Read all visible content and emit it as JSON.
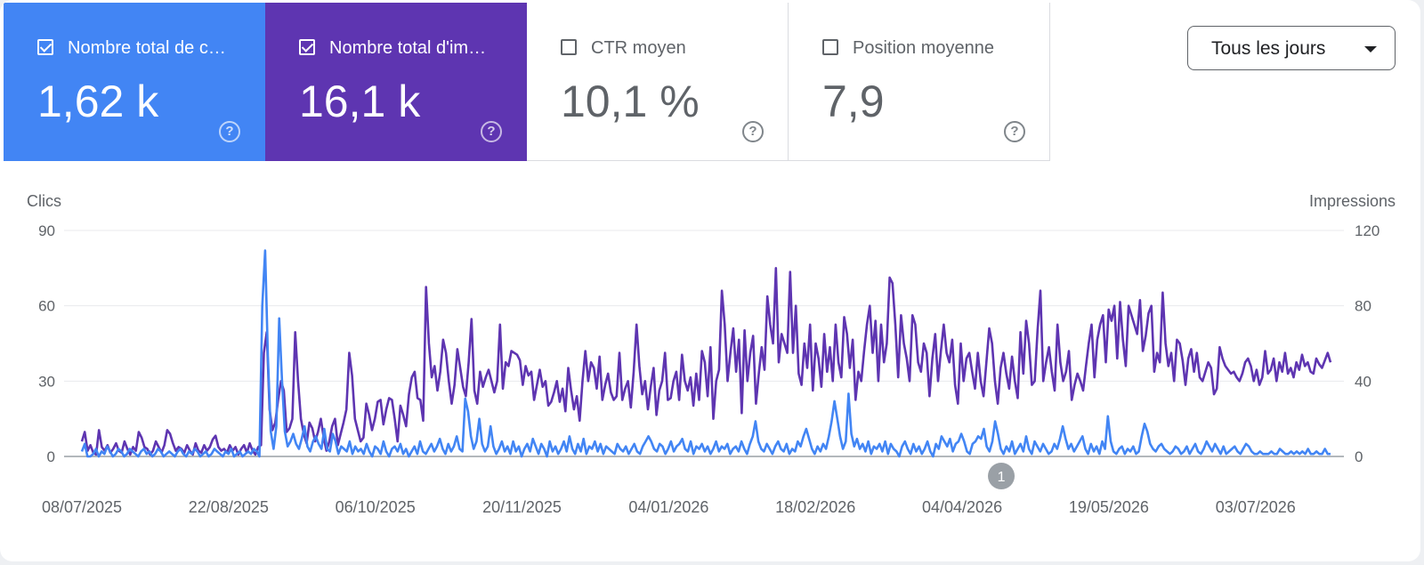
{
  "cards": [
    {
      "label": "Nombre total de c…",
      "value": "1,62 k",
      "checked": true,
      "color": "#4285f4"
    },
    {
      "label": "Nombre total d'im…",
      "value": "16,1 k",
      "checked": true,
      "color": "#5e35b1"
    },
    {
      "label": "CTR moyen",
      "value": "10,1 %",
      "checked": false,
      "color": "#ffffff"
    },
    {
      "label": "Position moyenne",
      "value": "7,9",
      "checked": false,
      "color": "#ffffff"
    }
  ],
  "help_icon_glyph": "?",
  "date_filter": {
    "label": "Tous les jours"
  },
  "annotation": {
    "label": "1",
    "date": "2026-04-16"
  },
  "chart_data": {
    "type": "line",
    "left_axis": {
      "title": "Clics",
      "ticks": [
        0,
        30,
        60,
        90
      ],
      "range": [
        0,
        90
      ]
    },
    "right_axis": {
      "title": "Impressions",
      "ticks": [
        0,
        40,
        80,
        120
      ],
      "range": [
        0,
        120
      ]
    },
    "x_start": "2025-07-08",
    "x_end": "2026-07-26",
    "x_tick_labels": [
      "08/07/2025",
      "22/08/2025",
      "06/10/2025",
      "20/11/2025",
      "04/01/2026",
      "18/02/2026",
      "04/04/2026",
      "19/05/2026",
      "03/07/2026"
    ],
    "series": [
      {
        "name": "Nombre total de clics",
        "axis": "left",
        "color": "#4285f4",
        "values": [
          2,
          5,
          0,
          0,
          1,
          3,
          0,
          2,
          1,
          4,
          2,
          0,
          1,
          3,
          2,
          0,
          1,
          3,
          2,
          1,
          0,
          2,
          3,
          1,
          2,
          0,
          1,
          3,
          2,
          0,
          1,
          2,
          1,
          0,
          2,
          3,
          1,
          0,
          2,
          1,
          3,
          2,
          0,
          1,
          2,
          0,
          1,
          3,
          2,
          1,
          0,
          2,
          1,
          3,
          0,
          1,
          2,
          0,
          1,
          2,
          1,
          3,
          2,
          0,
          60,
          82,
          40,
          10,
          3,
          12,
          55,
          30,
          10,
          4,
          6,
          9,
          5,
          3,
          7,
          12,
          4,
          2,
          6,
          8,
          5,
          3,
          11,
          3,
          2,
          9,
          6,
          1,
          4,
          3,
          2,
          6,
          1,
          4,
          2,
          3,
          1,
          5,
          2,
          0,
          4,
          3,
          1,
          6,
          2,
          0,
          3,
          4,
          2,
          5,
          1,
          3,
          0,
          2,
          4,
          1,
          6,
          2,
          1,
          3,
          5,
          2,
          4,
          7,
          3,
          1,
          5,
          2,
          4,
          8,
          3,
          2,
          23,
          18,
          8,
          3,
          6,
          15,
          5,
          2,
          4,
          12,
          4,
          1,
          3,
          6,
          2,
          4,
          1,
          6,
          2,
          4,
          0,
          3,
          5,
          2,
          7,
          4,
          1,
          5,
          3,
          0,
          6,
          2,
          4,
          1,
          3,
          6,
          2,
          8,
          3,
          1,
          5,
          2,
          7,
          1,
          4,
          3,
          6,
          2,
          5,
          1,
          4,
          3,
          2,
          1,
          5,
          3,
          2,
          4,
          1,
          3,
          5,
          2,
          1,
          4,
          6,
          8,
          6,
          3,
          2,
          5,
          4,
          1,
          3,
          6,
          2,
          4,
          5,
          7,
          3,
          2,
          6,
          1,
          4,
          3,
          5,
          2,
          4,
          1,
          3,
          6,
          2,
          4,
          3,
          5,
          1,
          3,
          4,
          2,
          6,
          3,
          1,
          5,
          8,
          14,
          6,
          3,
          2,
          5,
          3,
          1,
          4,
          6,
          3,
          2,
          5,
          1,
          3,
          2,
          6,
          4,
          8,
          11,
          7,
          3,
          1,
          4,
          2,
          5,
          3,
          8,
          14,
          22,
          15,
          8,
          3,
          6,
          25,
          9,
          4,
          7,
          3,
          5,
          2,
          6,
          1,
          4,
          3,
          5,
          2,
          6,
          1,
          5,
          3,
          2,
          0,
          4,
          6,
          3,
          1,
          5,
          2,
          4,
          1,
          3,
          6,
          2,
          0,
          5,
          3,
          8,
          6,
          4,
          7,
          2,
          5,
          6,
          9,
          6,
          2,
          1,
          5,
          6,
          8,
          7,
          11,
          4,
          2,
          6,
          14,
          9,
          3,
          1,
          4,
          2,
          6,
          1,
          3,
          5,
          2,
          8,
          3,
          1,
          6,
          4,
          2,
          5,
          3,
          1,
          2,
          5,
          3,
          7,
          12,
          7,
          3,
          5,
          2,
          4,
          6,
          8,
          3,
          1,
          5,
          2,
          4,
          1,
          6,
          3,
          16,
          6,
          2,
          1,
          3,
          4,
          1,
          3,
          2,
          4,
          1,
          2,
          8,
          13,
          10,
          5,
          3,
          2,
          4,
          5,
          3,
          2,
          1,
          2,
          4,
          3,
          1,
          2,
          4,
          1,
          3,
          5,
          2,
          1,
          3,
          6,
          4,
          2,
          5,
          3,
          1,
          4,
          1,
          2,
          3,
          4,
          2,
          1,
          3,
          5,
          4,
          2,
          1,
          1,
          2,
          1,
          1,
          1,
          2,
          1,
          1,
          3,
          2,
          1,
          1,
          2,
          1,
          2,
          1,
          2,
          1,
          3,
          1,
          1,
          2,
          1,
          1,
          3,
          1,
          1
        ],
        "note": ""
      },
      {
        "name": "Nombre total d'impressions",
        "axis": "right",
        "color": "#5e35b1",
        "values": [
          8,
          13,
          3,
          6,
          2,
          1,
          14,
          5,
          3,
          6,
          2,
          4,
          7,
          3,
          2,
          8,
          4,
          1,
          5,
          3,
          13,
          10,
          5,
          4,
          1,
          3,
          8,
          5,
          2,
          6,
          14,
          12,
          7,
          3,
          5,
          4,
          2,
          6,
          3,
          1,
          7,
          3,
          2,
          6,
          3,
          5,
          9,
          11,
          5,
          3,
          4,
          2,
          6,
          3,
          5,
          1,
          4,
          6,
          2,
          7,
          3,
          1,
          5,
          6,
          55,
          66,
          25,
          14,
          18,
          30,
          40,
          35,
          13,
          15,
          20,
          66,
          40,
          20,
          12,
          7,
          18,
          15,
          8,
          13,
          20,
          10,
          3,
          8,
          16,
          20,
          6,
          12,
          18,
          25,
          55,
          43,
          20,
          14,
          8,
          10,
          28,
          22,
          14,
          20,
          29,
          30,
          17,
          25,
          31,
          30,
          20,
          8,
          27,
          22,
          16,
          33,
          42,
          45,
          31,
          30,
          19,
          90,
          60,
          42,
          48,
          35,
          45,
          62,
          55,
          40,
          28,
          38,
          57,
          47,
          37,
          32,
          50,
          73,
          35,
          28,
          45,
          37,
          42,
          46,
          40,
          34,
          40,
          70,
          36,
          50,
          48,
          56,
          55,
          54,
          51,
          38,
          48,
          43,
          45,
          30,
          38,
          46,
          37,
          40,
          27,
          29,
          34,
          40,
          29,
          36,
          24,
          47,
          35,
          25,
          32,
          19,
          40,
          56,
          40,
          50,
          47,
          36,
          53,
          30,
          38,
          44,
          34,
          30,
          32,
          55,
          30,
          36,
          40,
          26,
          45,
          70,
          48,
          33,
          40,
          25,
          37,
          47,
          22,
          35,
          40,
          55,
          30,
          31,
          40,
          45,
          30,
          54,
          40,
          35,
          42,
          27,
          44,
          30,
          56,
          50,
          32,
          58,
          20,
          40,
          46,
          88,
          70,
          40,
          55,
          68,
          45,
          62,
          23,
          67,
          40,
          55,
          64,
          28,
          44,
          58,
          46,
          85,
          70,
          60,
          100,
          50,
          65,
          60,
          55,
          98,
          55,
          80,
          44,
          38,
          60,
          47,
          70,
          35,
          60,
          52,
          37,
          65,
          45,
          58,
          40,
          70,
          50,
          42,
          74,
          65,
          47,
          62,
          30,
          45,
          40,
          56,
          70,
          80,
          55,
          72,
          40,
          70,
          50,
          60,
          95,
          92,
          70,
          42,
          75,
          60,
          52,
          40,
          75,
          70,
          50,
          45,
          60,
          55,
          32,
          52,
          65,
          40,
          56,
          70,
          55,
          50,
          62,
          38,
          28,
          60,
          40,
          52,
          55,
          45,
          36,
          55,
          40,
          32,
          50,
          68,
          60,
          40,
          28,
          47,
          55,
          44,
          36,
          53,
          40,
          31,
          66,
          44,
          72,
          60,
          38,
          40,
          67,
          88,
          40,
          50,
          58,
          45,
          35,
          70,
          50,
          40,
          45,
          56,
          30,
          38,
          44,
          40,
          35,
          48,
          60,
          70,
          42,
          62,
          70,
          75,
          50,
          78,
          72,
          80,
          52,
          82,
          62,
          48,
          80,
          75,
          70,
          65,
          83,
          56,
          64,
          76,
          80,
          45,
          55,
          50,
          87,
          60,
          48,
          55,
          40,
          62,
          60,
          51,
          38,
          52,
          57,
          45,
          55,
          42,
          40,
          45,
          50,
          47,
          33,
          36,
          58,
          52,
          48,
          46,
          44,
          45,
          42,
          40,
          44,
          50,
          52,
          48,
          40,
          46,
          38,
          42,
          56,
          44,
          46,
          52,
          40,
          50,
          45,
          55,
          44,
          47,
          42,
          50,
          46,
          54,
          48,
          50,
          45,
          44,
          52,
          49,
          47,
          51,
          55,
          50
        ],
        "note": ""
      }
    ]
  }
}
